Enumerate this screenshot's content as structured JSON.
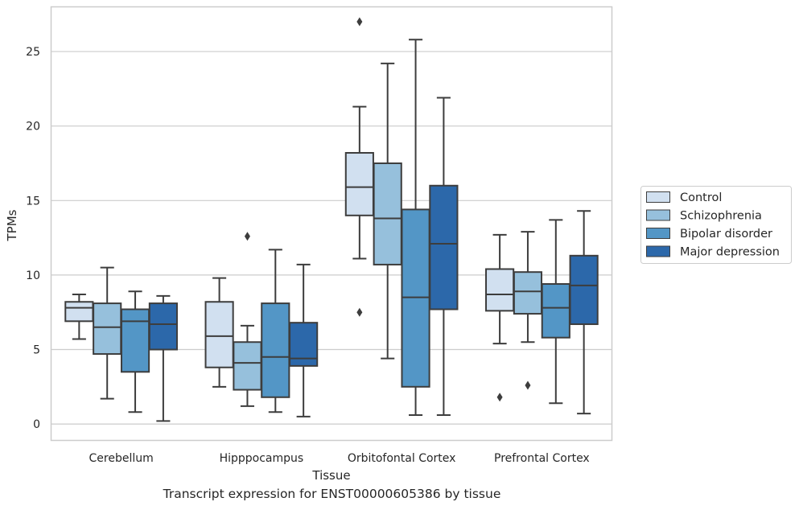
{
  "caption": "Transcript expression for ENST00000605386 by tissue",
  "chart_data": {
    "type": "boxplot",
    "xlabel": "Tissue",
    "ylabel": "TPMs",
    "ylim": [
      -1.1,
      28.0
    ],
    "yticks": [
      0,
      5,
      10,
      15,
      20,
      25
    ],
    "grid": "horizontal",
    "legend_position": "right",
    "categories": [
      "Cerebellum",
      "Hipppocampus",
      "Orbitofontal Cortex",
      "Prefrontal Cortex"
    ],
    "series": [
      {
        "name": "Control",
        "color": "#d1e0f0",
        "boxes": [
          {
            "whislo": 5.7,
            "q1": 6.9,
            "med": 7.8,
            "q3": 8.2,
            "whishi": 8.7,
            "fliers": []
          },
          {
            "whislo": 2.5,
            "q1": 3.8,
            "med": 5.9,
            "q3": 8.2,
            "whishi": 9.8,
            "fliers": []
          },
          {
            "whislo": 11.1,
            "q1": 14.0,
            "med": 15.9,
            "q3": 18.2,
            "whishi": 21.3,
            "fliers": [
              27.0,
              7.5
            ]
          },
          {
            "whislo": 5.4,
            "q1": 7.6,
            "med": 8.7,
            "q3": 10.4,
            "whishi": 12.7,
            "fliers": [
              1.8
            ]
          }
        ]
      },
      {
        "name": "Schizophrenia",
        "color": "#96c0dc",
        "boxes": [
          {
            "whislo": 1.7,
            "q1": 4.7,
            "med": 6.5,
            "q3": 8.1,
            "whishi": 10.5,
            "fliers": []
          },
          {
            "whislo": 1.2,
            "q1": 2.3,
            "med": 4.1,
            "q3": 5.5,
            "whishi": 6.6,
            "fliers": [
              12.6
            ]
          },
          {
            "whislo": 4.4,
            "q1": 10.7,
            "med": 13.8,
            "q3": 17.5,
            "whishi": 24.2,
            "fliers": []
          },
          {
            "whislo": 5.5,
            "q1": 7.4,
            "med": 8.9,
            "q3": 10.2,
            "whishi": 12.9,
            "fliers": [
              2.6
            ]
          }
        ]
      },
      {
        "name": "Bipolar disorder",
        "color": "#5396c6",
        "boxes": [
          {
            "whislo": 0.8,
            "q1": 3.5,
            "med": 6.9,
            "q3": 7.7,
            "whishi": 8.9,
            "fliers": []
          },
          {
            "whislo": 0.8,
            "q1": 1.8,
            "med": 4.5,
            "q3": 8.1,
            "whishi": 11.7,
            "fliers": []
          },
          {
            "whislo": 0.6,
            "q1": 2.5,
            "med": 8.5,
            "q3": 14.4,
            "whishi": 25.8,
            "fliers": []
          },
          {
            "whislo": 1.4,
            "q1": 5.8,
            "med": 7.8,
            "q3": 9.4,
            "whishi": 13.7,
            "fliers": []
          }
        ]
      },
      {
        "name": "Major depression",
        "color": "#2c68aa",
        "boxes": [
          {
            "whislo": 0.2,
            "q1": 5.0,
            "med": 6.7,
            "q3": 8.1,
            "whishi": 8.6,
            "fliers": []
          },
          {
            "whislo": 0.5,
            "q1": 3.9,
            "med": 4.4,
            "q3": 6.8,
            "whishi": 10.7,
            "fliers": []
          },
          {
            "whislo": 0.6,
            "q1": 7.7,
            "med": 12.1,
            "q3": 16.0,
            "whishi": 21.9,
            "fliers": []
          },
          {
            "whislo": 0.7,
            "q1": 6.7,
            "med": 9.3,
            "q3": 11.3,
            "whishi": 14.3,
            "fliers": []
          }
        ]
      }
    ]
  }
}
